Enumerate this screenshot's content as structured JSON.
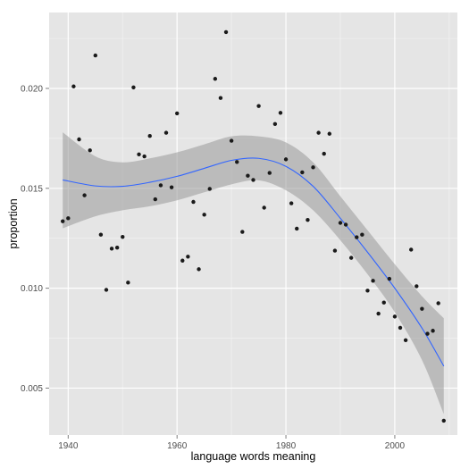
{
  "chart_data": {
    "type": "scatter",
    "xlabel": "language words meaning",
    "ylabel": "proportion",
    "xlim": [
      1936.5,
      2011.5
    ],
    "ylim": [
      0.00265,
      0.0238
    ],
    "x_ticks": [
      1940,
      1960,
      1980,
      2000
    ],
    "x_tick_labels": [
      "1940",
      "1960",
      "1980",
      "2000"
    ],
    "y_ticks": [
      0.005,
      0.01,
      0.015,
      0.02
    ],
    "y_tick_labels": [
      "0.005",
      "0.010",
      "0.015",
      "0.020"
    ],
    "grid": true,
    "legend": "none",
    "colors": {
      "panel": "#e5e5e5",
      "grid_major": "#ffffff",
      "grid_minor": "#f2f2f2",
      "point": "#1a1a1a",
      "smooth_line": "#3366ff",
      "ribbon": "#999999"
    },
    "points": {
      "x": [
        1939,
        1940,
        1941,
        1942,
        1943,
        1944,
        1945,
        1946,
        1947,
        1948,
        1949,
        1950,
        1951,
        1952,
        1953,
        1954,
        1955,
        1956,
        1957,
        1958,
        1959,
        1960,
        1961,
        1962,
        1963,
        1964,
        1965,
        1966,
        1967,
        1968,
        1969,
        1970,
        1971,
        1972,
        1973,
        1974,
        1975,
        1976,
        1977,
        1978,
        1979,
        1980,
        1981,
        1982,
        1983,
        1984,
        1985,
        1986,
        1987,
        1988,
        1989,
        1990,
        1991,
        1992,
        1993,
        1994,
        1995,
        1996,
        1997,
        1998,
        1999,
        2000,
        2001,
        2002,
        2003,
        2004,
        2005,
        2006,
        2007,
        2008,
        2009
      ],
      "y": [
        0.01335,
        0.0135,
        0.0201,
        0.01745,
        0.01465,
        0.0169,
        0.02165,
        0.01268,
        0.00992,
        0.01198,
        0.01203,
        0.01257,
        0.01028,
        0.02005,
        0.0167,
        0.0166,
        0.01762,
        0.01445,
        0.01515,
        0.01778,
        0.01505,
        0.01875,
        0.01138,
        0.01158,
        0.01432,
        0.01095,
        0.01368,
        0.01497,
        0.02048,
        0.01952,
        0.02282,
        0.01738,
        0.01632,
        0.01282,
        0.01563,
        0.01542,
        0.01912,
        0.01403,
        0.01577,
        0.01822,
        0.01878,
        0.01645,
        0.01425,
        0.01298,
        0.0158,
        0.01342,
        0.01605,
        0.01778,
        0.01673,
        0.01773,
        0.01188,
        0.01327,
        0.01318,
        0.01152,
        0.01255,
        0.01268,
        0.00988,
        0.01037,
        0.00873,
        0.00928,
        0.01047,
        0.00858,
        0.00802,
        0.0074,
        0.01193,
        0.0101,
        0.00897,
        0.00772,
        0.00787,
        0.00925,
        0.00337
      ]
    },
    "smooth": {
      "x": [
        1939,
        1945,
        1950,
        1955,
        1960,
        1965,
        1970,
        1975,
        1980,
        1985,
        1990,
        1995,
        2000,
        2005,
        2009
      ],
      "y": [
        0.01542,
        0.01512,
        0.0151,
        0.0153,
        0.0156,
        0.016,
        0.0164,
        0.0165,
        0.0161,
        0.0151,
        0.0135,
        0.0118,
        0.01,
        0.008,
        0.0061
      ],
      "lower": [
        0.013,
        0.0136,
        0.0139,
        0.0141,
        0.0144,
        0.0148,
        0.0152,
        0.0154,
        0.0149,
        0.0139,
        0.0124,
        0.0107,
        0.0088,
        0.0064,
        0.0037
      ],
      "upper": [
        0.0178,
        0.0166,
        0.0163,
        0.0165,
        0.0168,
        0.0172,
        0.0176,
        0.0176,
        0.0173,
        0.0163,
        0.0146,
        0.0129,
        0.0112,
        0.0096,
        0.0085
      ]
    }
  }
}
